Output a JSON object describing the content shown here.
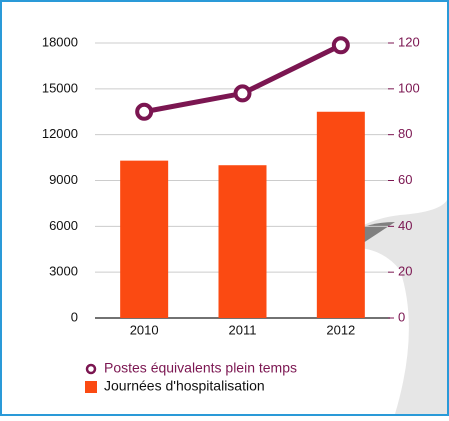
{
  "chart_data": {
    "type": "bar",
    "categories": [
      "2010",
      "2011",
      "2012"
    ],
    "series": [
      {
        "name": "Postes équivalents plein temps",
        "type": "line",
        "axis": "y2",
        "color": "#7b1651",
        "values": [
          90,
          98,
          119
        ]
      },
      {
        "name": "Journées d'hospitalisation",
        "type": "bar",
        "color": "#fb4a12",
        "values": [
          10300,
          10000,
          13500
        ]
      }
    ],
    "ylim": [
      0,
      18000
    ],
    "yticks": [
      0,
      3000,
      6000,
      9000,
      12000,
      15000,
      18000
    ],
    "y2lim": [
      0,
      120
    ],
    "y2ticks": [
      0,
      20,
      40,
      60,
      80,
      100,
      120
    ],
    "y2_color": "#7b1651",
    "grid": true
  }
}
